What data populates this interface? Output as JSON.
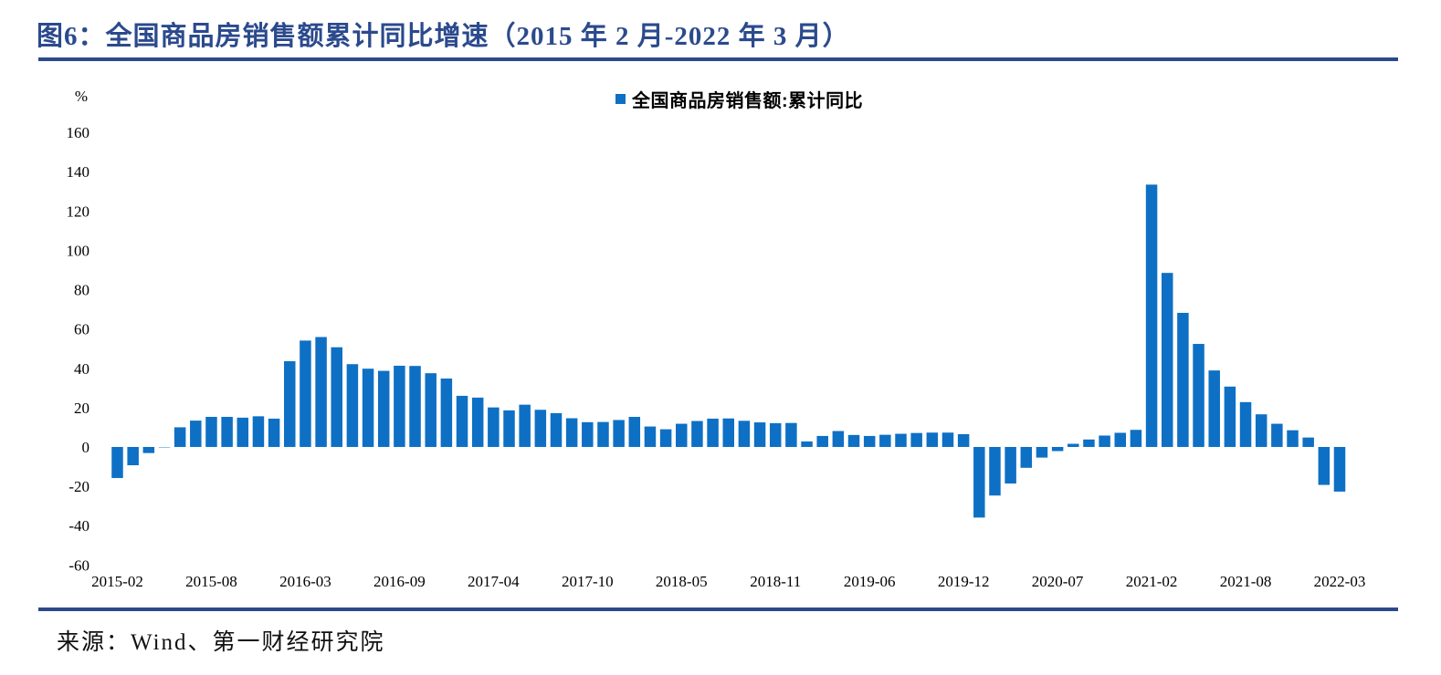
{
  "page": {
    "title": "图6：全国商品房销售额累计同比增速（2015 年 2 月-2022 年 3 月）",
    "source": "来源：Wind、第一财经研究院"
  },
  "colors": {
    "title_navy": "#2B4A8D",
    "rule_navy": "#2B4A8D",
    "bar_blue": "#0E70C4",
    "axis_text": "#000000"
  },
  "chart_data": {
    "type": "bar",
    "title": "全国商品房销售额累计同比增速（2015 年 2 月-2022 年 3 月）",
    "legend": [
      "全国商品房销售额:累计同比"
    ],
    "legend_position": "top-center",
    "unit_label": "%",
    "ylabel": "",
    "xlabel": "",
    "ylim": [
      -60,
      160
    ],
    "ytick_step": 20,
    "grid": false,
    "bar_color": "#0E70C4",
    "categories": [
      "2015-02",
      "2015-03",
      "2015-04",
      "2015-05",
      "2015-06",
      "2015-07",
      "2015-08",
      "2015-09",
      "2015-10",
      "2015-11",
      "2015-12",
      "2016-02",
      "2016-03",
      "2016-04",
      "2016-05",
      "2016-06",
      "2016-07",
      "2016-08",
      "2016-09",
      "2016-10",
      "2016-11",
      "2016-12",
      "2017-02",
      "2017-03",
      "2017-04",
      "2017-05",
      "2017-06",
      "2017-07",
      "2017-08",
      "2017-09",
      "2017-10",
      "2017-11",
      "2017-12",
      "2018-02",
      "2018-03",
      "2018-04",
      "2018-05",
      "2018-06",
      "2018-07",
      "2018-08",
      "2018-09",
      "2018-10",
      "2018-11",
      "2018-12",
      "2019-02",
      "2019-03",
      "2019-04",
      "2019-05",
      "2019-06",
      "2019-07",
      "2019-08",
      "2019-09",
      "2019-10",
      "2019-11",
      "2019-12",
      "2020-02",
      "2020-03",
      "2020-04",
      "2020-05",
      "2020-06",
      "2020-07",
      "2020-08",
      "2020-09",
      "2020-10",
      "2020-11",
      "2020-12",
      "2021-02",
      "2021-03",
      "2021-04",
      "2021-05",
      "2021-06",
      "2021-07",
      "2021-08",
      "2021-09",
      "2021-10",
      "2021-11",
      "2021-12",
      "2022-02",
      "2022-03"
    ],
    "values": [
      -15.8,
      -9.3,
      -3.1,
      -0.2,
      10.0,
      13.4,
      15.3,
      15.3,
      14.9,
      15.6,
      14.4,
      43.6,
      54.1,
      55.9,
      50.7,
      42.1,
      39.8,
      38.7,
      41.3,
      41.2,
      37.5,
      34.8,
      26.0,
      25.1,
      20.1,
      18.6,
      21.5,
      18.9,
      17.2,
      14.6,
      12.6,
      12.7,
      13.7,
      15.3,
      10.4,
      9.0,
      11.8,
      13.2,
      14.4,
      14.5,
      13.3,
      12.5,
      12.1,
      12.2,
      2.8,
      5.6,
      8.1,
      6.1,
      5.6,
      6.2,
      6.7,
      7.1,
      7.3,
      7.3,
      6.5,
      -35.9,
      -24.7,
      -18.6,
      -10.6,
      -5.4,
      -2.1,
      1.6,
      3.8,
      5.8,
      7.2,
      8.7,
      133.4,
      88.5,
      68.2,
      52.4,
      38.9,
      30.7,
      22.8,
      16.6,
      11.8,
      8.5,
      4.8,
      -19.3,
      -22.7
    ],
    "xtick_every": 6,
    "xtick_labels_shown": [
      "2015-02",
      "2015-08",
      "2016-03",
      "2016-09",
      "2017-04",
      "2017-10",
      "2018-05",
      "2018-11",
      "2019-06",
      "2019-12",
      "2020-07",
      "2021-02",
      "2021-08",
      "2022-03"
    ]
  }
}
